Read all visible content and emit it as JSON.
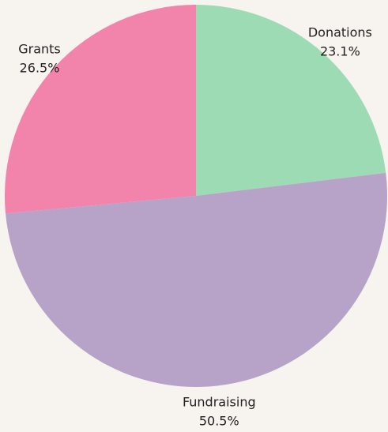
{
  "chart_data": {
    "type": "pie",
    "categories": [
      "Donations",
      "Fundraising",
      "Grants"
    ],
    "values": [
      23.1,
      50.5,
      26.5
    ],
    "value_labels": [
      "23.1%",
      "50.5%",
      "26.5%"
    ],
    "colors": [
      "#9ddbb4",
      "#b8a3c8",
      "#f283ab"
    ],
    "start_angle": "top",
    "direction": "clockwise"
  }
}
